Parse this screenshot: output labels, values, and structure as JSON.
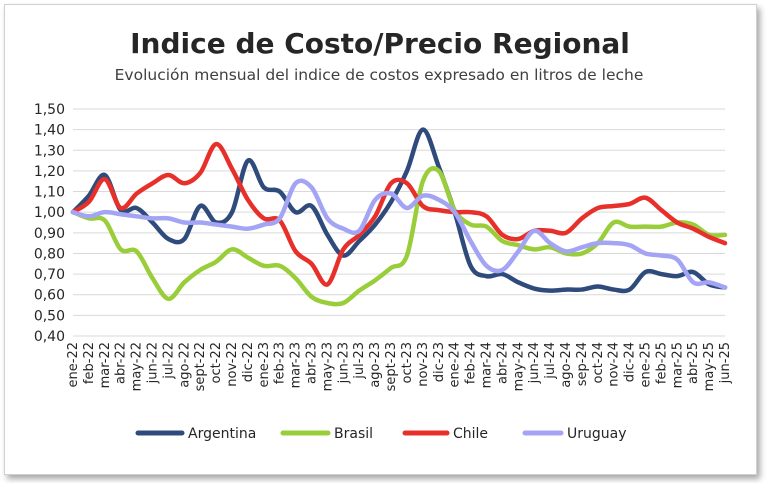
{
  "chart_data": {
    "type": "line",
    "title": "Indice de Costo/Precio Regional",
    "subtitle": "Evolución mensual del indice de costos expresado en litros de leche",
    "xlabel": "",
    "ylabel": "",
    "ylim": [
      0.4,
      1.5
    ],
    "yticks": [
      "0,40",
      "0,50",
      "0,60",
      "0,70",
      "0,80",
      "0,90",
      "1,00",
      "1,10",
      "1,20",
      "1,30",
      "1,40",
      "1,50"
    ],
    "grid": true,
    "legend_position": "bottom",
    "categories": [
      "ene-22",
      "feb-22",
      "mar-22",
      "abr-22",
      "may-22",
      "jun-22",
      "jul-22",
      "ago-22",
      "sept-22",
      "oct-22",
      "nov-22",
      "dic-22",
      "ene-23",
      "feb-23",
      "mar-23",
      "abr-23",
      "may-23",
      "jun-23",
      "jul-23",
      "ago-23",
      "sept-23",
      "oct-23",
      "nov-23",
      "dic-23",
      "ene-24",
      "feb-24",
      "mar-24",
      "abr-24",
      "may-24",
      "jun-24",
      "jul-24",
      "ago-24",
      "sep-24",
      "oct-24",
      "nov-24",
      "dic-24",
      "ene-25",
      "feb-25",
      "mar-25",
      "abr-25",
      "may-25",
      "jun-25"
    ],
    "series": [
      {
        "name": "Argentina",
        "color": "#2f4b7c",
        "values": [
          1.0,
          1.08,
          1.18,
          1.01,
          1.02,
          0.95,
          0.87,
          0.87,
          1.03,
          0.95,
          1.0,
          1.25,
          1.12,
          1.1,
          1.0,
          1.03,
          0.89,
          0.79,
          0.86,
          0.94,
          1.05,
          1.2,
          1.4,
          1.22,
          1.0,
          0.74,
          0.69,
          0.7,
          0.66,
          0.63,
          0.62,
          0.625,
          0.625,
          0.64,
          0.625,
          0.625,
          0.71,
          0.7,
          0.69,
          0.71,
          0.65,
          0.635
        ]
      },
      {
        "name": "Brasil",
        "color": "#9acd3a",
        "values": [
          1.0,
          0.97,
          0.96,
          0.82,
          0.81,
          0.68,
          0.58,
          0.66,
          0.72,
          0.76,
          0.82,
          0.78,
          0.74,
          0.74,
          0.68,
          0.59,
          0.56,
          0.56,
          0.62,
          0.67,
          0.73,
          0.79,
          1.15,
          1.2,
          1.01,
          0.94,
          0.93,
          0.86,
          0.84,
          0.82,
          0.83,
          0.8,
          0.8,
          0.85,
          0.95,
          0.93,
          0.93,
          0.93,
          0.95,
          0.94,
          0.89,
          0.89
        ]
      },
      {
        "name": "Chile",
        "color": "#e8302a",
        "values": [
          1.0,
          1.05,
          1.16,
          1.02,
          1.09,
          1.14,
          1.18,
          1.14,
          1.19,
          1.33,
          1.21,
          1.06,
          0.97,
          0.96,
          0.81,
          0.75,
          0.65,
          0.82,
          0.89,
          0.98,
          1.14,
          1.14,
          1.03,
          1.01,
          1.0,
          1.0,
          0.98,
          0.89,
          0.87,
          0.91,
          0.91,
          0.9,
          0.97,
          1.02,
          1.03,
          1.04,
          1.07,
          1.01,
          0.95,
          0.92,
          0.88,
          0.85
        ]
      },
      {
        "name": "Uruguay",
        "color": "#a4a4f5",
        "values": [
          1.0,
          0.98,
          1.0,
          0.99,
          0.98,
          0.97,
          0.97,
          0.95,
          0.95,
          0.94,
          0.93,
          0.92,
          0.94,
          0.97,
          1.14,
          1.12,
          0.97,
          0.92,
          0.91,
          1.06,
          1.09,
          1.02,
          1.08,
          1.06,
          1.0,
          0.86,
          0.74,
          0.72,
          0.81,
          0.91,
          0.85,
          0.81,
          0.83,
          0.85,
          0.85,
          0.84,
          0.8,
          0.79,
          0.77,
          0.66,
          0.66,
          0.635
        ]
      }
    ]
  }
}
